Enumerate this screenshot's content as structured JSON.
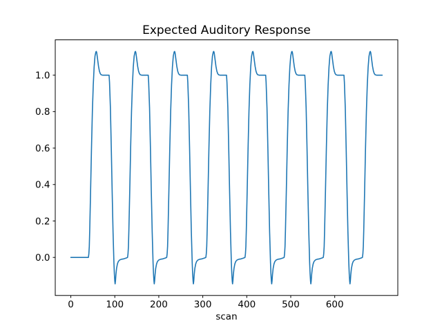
{
  "window": {
    "background_color": "#ffffff"
  },
  "chart_data": {
    "type": "line",
    "title": "Expected Auditory Response",
    "xlabel": "scan",
    "ylabel": "",
    "legend": "none",
    "grid": false,
    "frame_color": "#000000",
    "background_color": "#ffffff",
    "line_color": "#1f77b4",
    "line_width": 1.6,
    "x_ticks": [
      0,
      100,
      200,
      300,
      400,
      500,
      600
    ],
    "x_tick_labels": [
      "0",
      "100",
      "200",
      "300",
      "400",
      "500",
      "600"
    ],
    "y_ticks": [
      0.0,
      0.2,
      0.4,
      0.6,
      0.8,
      1.0
    ],
    "y_tick_labels": [
      "0.0",
      "0.2",
      "0.4",
      "0.6",
      "0.8",
      "1.0"
    ],
    "xlim": [
      -35.4,
      743.4
    ],
    "ylim": [
      -0.20875,
      1.19375
    ],
    "series": [
      {
        "name": "expected-auditory-response",
        "n_cycles": 8,
        "cycle_period_scans": 89,
        "first_scan": 0,
        "last_scan": 708,
        "baseline_value": 0.0,
        "peak_value": 1.13,
        "plateau_value": 1.0,
        "undershoot_value": -0.145,
        "baseline_points": [
          [
            0,
            0.0
          ],
          [
            39,
            0.0
          ]
        ],
        "cycle_onsets": [
          40,
          129,
          218,
          307,
          396,
          485,
          574,
          663
        ],
        "cycle_template": [
          [
            0,
            0.0
          ],
          [
            1,
            0.02
          ],
          [
            2,
            0.06
          ],
          [
            3,
            0.15
          ],
          [
            5,
            0.37
          ],
          [
            7,
            0.6
          ],
          [
            9,
            0.8
          ],
          [
            11,
            0.945
          ],
          [
            13,
            1.045
          ],
          [
            15,
            1.105
          ],
          [
            17,
            1.128
          ],
          [
            18,
            1.13
          ],
          [
            19,
            1.122
          ],
          [
            21,
            1.085
          ],
          [
            23,
            1.048
          ],
          [
            25,
            1.022
          ],
          [
            27,
            1.008
          ],
          [
            29,
            1.002
          ],
          [
            32,
            1.0
          ],
          [
            47,
            1.0
          ],
          [
            48,
            0.96
          ],
          [
            50,
            0.82
          ],
          [
            52,
            0.6
          ],
          [
            54,
            0.36
          ],
          [
            56,
            0.14
          ],
          [
            58,
            -0.03
          ],
          [
            59,
            -0.09
          ],
          [
            60,
            -0.13
          ],
          [
            60.7,
            -0.145
          ],
          [
            61.5,
            -0.13
          ],
          [
            62.5,
            -0.095
          ],
          [
            64,
            -0.06
          ],
          [
            66,
            -0.035
          ],
          [
            68,
            -0.022
          ],
          [
            71,
            -0.014
          ],
          [
            75,
            -0.01
          ],
          [
            80,
            -0.008
          ],
          [
            85,
            -0.004
          ],
          [
            88,
            -0.001
          ]
        ]
      }
    ]
  }
}
